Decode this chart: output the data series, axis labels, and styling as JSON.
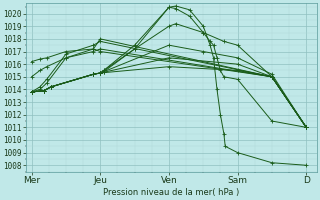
{
  "title": "Pression niveau de la mer( hPa )",
  "background_color": "#c0e8e8",
  "grid_color_major": "#90c0c0",
  "grid_color_minor": "#b0d8d8",
  "line_color": "#1a5c1a",
  "ylim_bottom": 1007.5,
  "ylim_top": 1020.8,
  "xlabel_fontsize": 6.0,
  "ytick_fontsize": 5.5,
  "xtick_fontsize": 6.5,
  "xtick_labels": [
    "Mer",
    "Jeu",
    "Ven",
    "Sam",
    "D"
  ],
  "xtick_positions": [
    0,
    1,
    2,
    3,
    4
  ],
  "lines": [
    {
      "x": [
        0.0,
        0.18,
        0.28,
        0.9,
        1.0,
        1.05,
        1.5,
        2.0,
        2.1,
        2.3,
        2.5,
        2.6,
        2.65,
        2.7,
        2.75,
        2.8,
        2.82,
        3.0,
        3.5,
        4.0
      ],
      "y": [
        1013.8,
        1013.9,
        1014.2,
        1015.2,
        1015.3,
        1015.4,
        1017.2,
        1020.5,
        1020.6,
        1020.3,
        1019.0,
        1017.5,
        1016.5,
        1014.0,
        1012.0,
        1010.5,
        1009.5,
        1009.0,
        1008.2,
        1008.0
      ]
    },
    {
      "x": [
        0.0,
        0.18,
        0.28,
        0.9,
        1.0,
        1.05,
        1.5,
        2.0,
        2.1,
        2.3,
        2.5,
        2.6,
        2.65,
        2.7,
        2.75,
        2.8,
        3.0,
        3.5,
        4.0
      ],
      "y": [
        1013.8,
        1013.9,
        1014.2,
        1015.2,
        1015.3,
        1015.5,
        1017.5,
        1020.5,
        1020.4,
        1019.8,
        1018.5,
        1017.8,
        1017.5,
        1016.5,
        1015.5,
        1015.0,
        1014.8,
        1011.5,
        1011.0
      ]
    },
    {
      "x": [
        0.0,
        0.18,
        0.28,
        0.9,
        1.0,
        1.05,
        1.5,
        2.0,
        2.1,
        2.5,
        2.8,
        3.0,
        3.5,
        4.0
      ],
      "y": [
        1013.8,
        1013.9,
        1014.2,
        1015.2,
        1015.3,
        1015.5,
        1017.2,
        1019.0,
        1019.2,
        1018.5,
        1017.8,
        1017.5,
        1015.0,
        1011.0
      ]
    },
    {
      "x": [
        0.0,
        0.18,
        0.28,
        0.9,
        1.0,
        1.05,
        2.0,
        2.5,
        3.0,
        3.5,
        4.0
      ],
      "y": [
        1013.8,
        1013.9,
        1014.2,
        1015.2,
        1015.3,
        1015.4,
        1017.5,
        1017.0,
        1016.5,
        1015.2,
        1011.0
      ]
    },
    {
      "x": [
        0.0,
        0.18,
        0.28,
        0.9,
        1.0,
        2.0,
        3.0,
        3.5,
        4.0
      ],
      "y": [
        1013.8,
        1013.9,
        1014.2,
        1015.2,
        1015.3,
        1016.5,
        1016.0,
        1015.0,
        1011.0
      ]
    },
    {
      "x": [
        0.0,
        0.18,
        0.28,
        0.9,
        1.0,
        2.0,
        3.0,
        3.5,
        4.0
      ],
      "y": [
        1013.8,
        1013.9,
        1014.2,
        1015.2,
        1015.3,
        1015.8,
        1015.5,
        1015.0,
        1011.0
      ]
    },
    {
      "x": [
        0.0,
        0.12,
        0.22,
        0.5,
        0.9,
        1.0,
        3.5,
        4.0
      ],
      "y": [
        1013.8,
        1014.0,
        1014.5,
        1016.5,
        1017.2,
        1018.0,
        1015.0,
        1011.0
      ]
    },
    {
      "x": [
        0.0,
        0.12,
        0.22,
        0.5,
        0.9,
        1.0,
        3.5,
        4.0
      ],
      "y": [
        1013.8,
        1014.2,
        1014.8,
        1016.8,
        1017.5,
        1017.8,
        1015.0,
        1011.0
      ]
    },
    {
      "x": [
        0.0,
        0.12,
        0.22,
        0.5,
        0.9,
        1.0,
        3.5,
        4.0
      ],
      "y": [
        1015.0,
        1015.5,
        1015.8,
        1016.5,
        1017.0,
        1017.2,
        1015.0,
        1011.0
      ]
    },
    {
      "x": [
        0.0,
        0.12,
        0.22,
        0.5,
        0.9,
        1.0,
        3.5,
        4.0
      ],
      "y": [
        1016.2,
        1016.4,
        1016.5,
        1017.0,
        1017.2,
        1017.0,
        1015.0,
        1011.0
      ]
    }
  ]
}
